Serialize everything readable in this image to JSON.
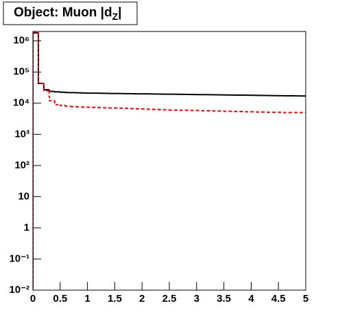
{
  "chart_data": {
    "type": "histogram",
    "title": "Object: Muon |dZ|",
    "bins": [
      0,
      0.1,
      0.2,
      0.3,
      0.4,
      0.5,
      0.6,
      0.7,
      0.8,
      0.9,
      1,
      1.1,
      1.2,
      1.3,
      1.4,
      1.5,
      1.6,
      1.7,
      1.8,
      1.9,
      2,
      2.1,
      2.2,
      2.3,
      2.4,
      2.5,
      2.6,
      2.7,
      2.8,
      2.9,
      3,
      3.1,
      3.2,
      3.3,
      3.4,
      3.5,
      3.6,
      3.7,
      3.8,
      3.9,
      4,
      4.1,
      4.2,
      4.3,
      4.4,
      4.5,
      4.6,
      4.7,
      4.8,
      4.9,
      5
    ],
    "series": [
      {
        "color": "#000000",
        "values": [
          1800000,
          43000,
          27000,
          24000,
          23000,
          22500,
          22000,
          21800,
          21500,
          21300,
          21000,
          21000,
          20800,
          20700,
          20500,
          20400,
          20300,
          20200,
          20100,
          20000,
          19900,
          19800,
          19700,
          19600,
          19500,
          19400,
          19300,
          19200,
          19100,
          19000,
          18900,
          18800,
          18700,
          18600,
          18500,
          18400,
          18300,
          18200,
          18100,
          18000,
          17900,
          17800,
          17700,
          17600,
          17500,
          17400,
          17300,
          17200,
          17100,
          17000
        ]
      },
      {
        "color": "#ff0000",
        "dashed": true,
        "values": [
          1900000,
          43000,
          25000,
          12000,
          9000,
          8500,
          8000,
          7800,
          7600,
          7500,
          7400,
          7300,
          7200,
          7100,
          7000,
          7000,
          6900,
          6800,
          6700,
          6600,
          6500,
          6400,
          6300,
          6200,
          6100,
          6000,
          6000,
          5900,
          5900,
          5800,
          5800,
          5700,
          5700,
          5600,
          5600,
          5500,
          5500,
          5400,
          5400,
          5300,
          5300,
          5200,
          5200,
          5100,
          5100,
          5100,
          5000,
          5000,
          5000,
          5000
        ]
      }
    ],
    "xlim": [
      0,
      5
    ],
    "xticks": [
      0,
      0.5,
      1,
      1.5,
      2,
      2.5,
      3,
      3.5,
      4,
      4.5,
      5
    ],
    "ylim": [
      0.01,
      2000000
    ],
    "log_y": true,
    "yticks": [
      {
        "value": 0.01,
        "label": "10⁻²"
      },
      {
        "value": 0.1,
        "label": "10⁻¹"
      },
      1,
      10,
      {
        "value": 100,
        "label": "10²"
      },
      {
        "value": 1000,
        "label": "10³"
      },
      {
        "value": 10000,
        "label": "10⁴"
      },
      {
        "value": 100000,
        "label": "10⁵"
      },
      {
        "value": 1000000,
        "label": "10⁶"
      }
    ]
  }
}
